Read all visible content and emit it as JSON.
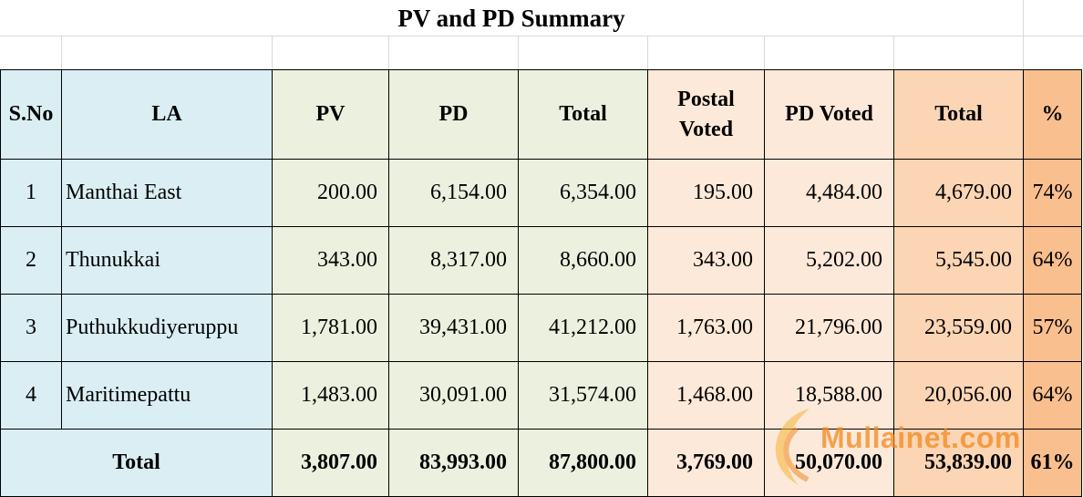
{
  "title": "PV and PD Summary",
  "headers": {
    "sno": "S.No",
    "la": "LA",
    "pv": "PV",
    "pd": "PD",
    "total": "Total",
    "postal_voted": "Postal Voted",
    "pd_voted": "PD Voted",
    "total_voted": "Total",
    "percent": "%"
  },
  "rows": [
    {
      "sno": "1",
      "la": "Manthai East",
      "pv": "200.00",
      "pd": "6,154.00",
      "total": "6,354.00",
      "postal_voted": "195.00",
      "pd_voted": "4,484.00",
      "total_voted": "4,679.00",
      "percent": "74%"
    },
    {
      "sno": "2",
      "la": "Thunukkai",
      "pv": "343.00",
      "pd": "8,317.00",
      "total": "8,660.00",
      "postal_voted": "343.00",
      "pd_voted": "5,202.00",
      "total_voted": "5,545.00",
      "percent": "64%"
    },
    {
      "sno": "3",
      "la": "Puthukkudiyeruppu",
      "pv": "1,781.00",
      "pd": "39,431.00",
      "total": "41,212.00",
      "postal_voted": "1,763.00",
      "pd_voted": "21,796.00",
      "total_voted": "23,559.00",
      "percent": "57%"
    },
    {
      "sno": "4",
      "la": "Maritimepattu",
      "pv": "1,483.00",
      "pd": "30,091.00",
      "total": "31,574.00",
      "postal_voted": "1,468.00",
      "pd_voted": "18,588.00",
      "total_voted": "20,056.00",
      "percent": "64%"
    }
  ],
  "totals": {
    "label": "Total",
    "pv": "3,807.00",
    "pd": "83,993.00",
    "total": "87,800.00",
    "postal_voted": "3,769.00",
    "pd_voted": "50,070.00",
    "total_voted": "53,839.00",
    "percent": "61%"
  },
  "watermark": {
    "text": "Mullainet.com",
    "color": "#f28a1e"
  },
  "colors": {
    "blue": "#daeef3",
    "green": "#ebf1de",
    "peach": "#fde9d9",
    "orange": "#fcd5b4",
    "dark_orange": "#fabf8f"
  }
}
